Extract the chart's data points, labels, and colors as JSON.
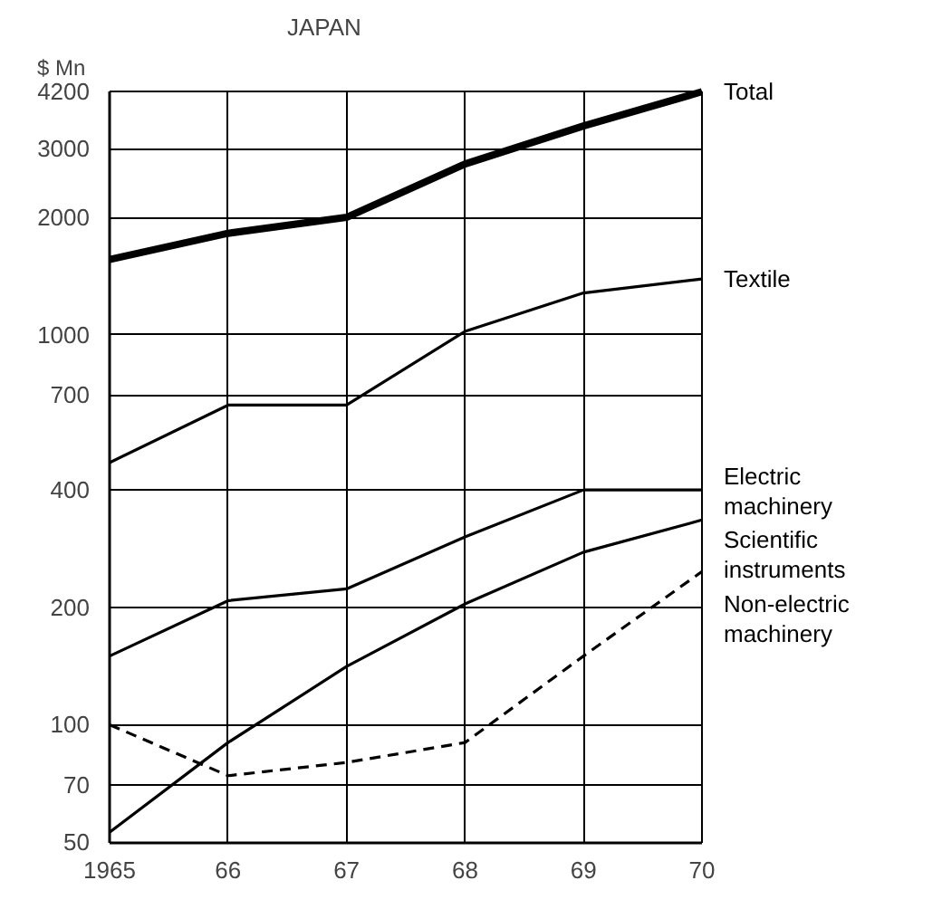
{
  "chart_data": {
    "type": "line",
    "title": "JAPAN",
    "ylabel": "$ Mn",
    "x": [
      1965,
      1966,
      1967,
      1968,
      1969,
      1970
    ],
    "xlim": [
      1965,
      1970
    ],
    "xticks": [
      {
        "value": 1965,
        "label": "1965"
      },
      {
        "value": 1966,
        "label": "66"
      },
      {
        "value": 1967,
        "label": "67"
      },
      {
        "value": 1968,
        "label": "68"
      },
      {
        "value": 1969,
        "label": "69"
      },
      {
        "value": 1970,
        "label": "70"
      }
    ],
    "log": true,
    "ylim": [
      50,
      4200
    ],
    "yticks": [
      50,
      70,
      100,
      200,
      400,
      700,
      1000,
      2000,
      3000,
      4200
    ],
    "grid": true,
    "marker": "none",
    "line_style": "solid",
    "series": [
      {
        "name": "Total",
        "color": "#000000",
        "values": [
          1560,
          1820,
          2000,
          2740,
          3430,
          4200
        ]
      },
      {
        "name": "Textile",
        "color": "#000000",
        "values": [
          470,
          660,
          660,
          1020,
          1280,
          1390
        ]
      },
      {
        "name": "Electric machinery",
        "color": "#000000",
        "values": [
          150,
          208,
          223,
          303,
          400,
          400
        ]
      },
      {
        "name": "Scientific instruments",
        "color": "#000000",
        "values": [
          53,
          90,
          141,
          204,
          277,
          335
        ]
      },
      {
        "name": "Non-electric machinery",
        "color": "#000000",
        "line_style": "dashed",
        "values": [
          100,
          74,
          80,
          90,
          150,
          247
        ]
      }
    ]
  }
}
